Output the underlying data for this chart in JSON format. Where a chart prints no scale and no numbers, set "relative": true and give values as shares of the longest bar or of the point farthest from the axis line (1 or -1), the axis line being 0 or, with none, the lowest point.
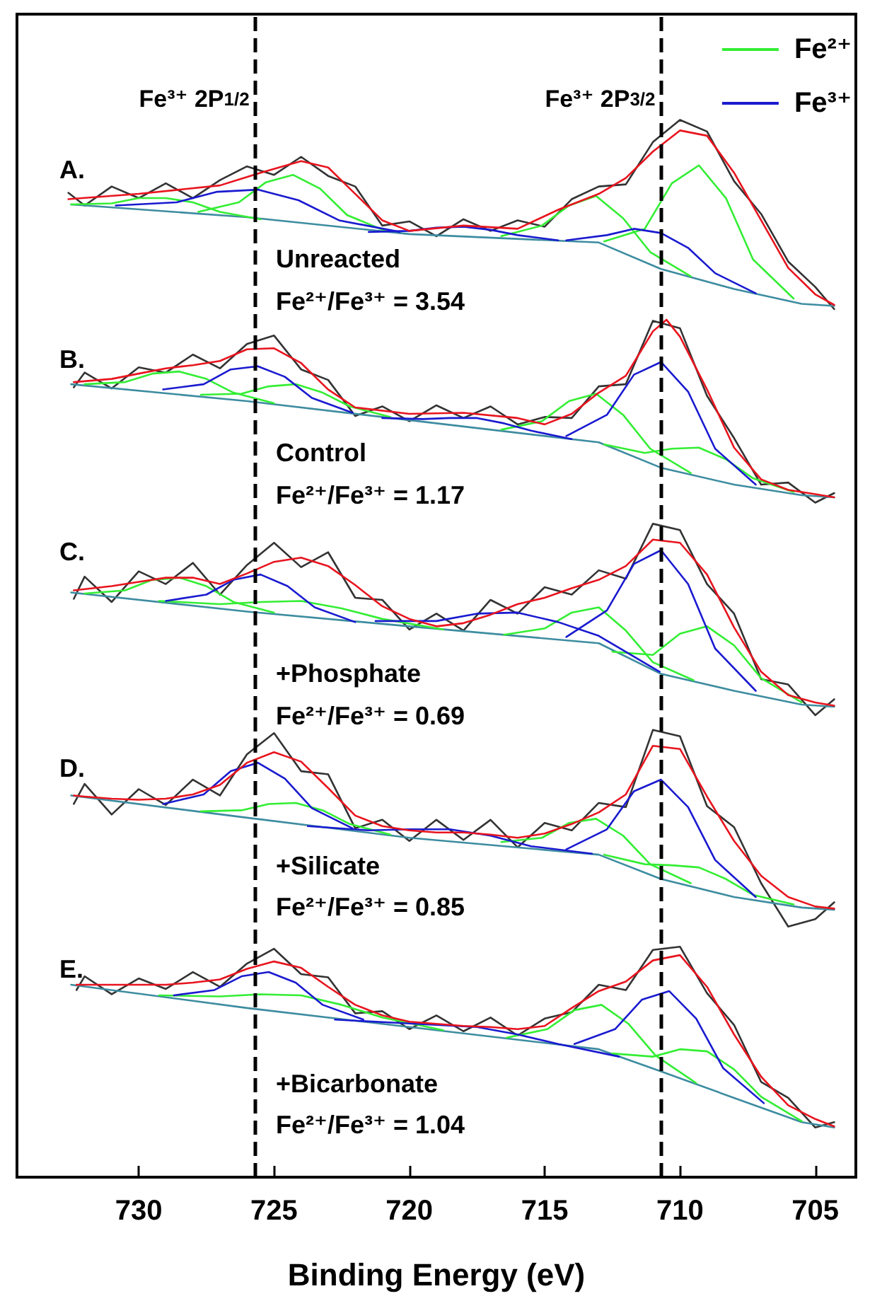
{
  "chart_data": {
    "type": "line",
    "relative": true,
    "xlabel": "Binding Energy (eV)",
    "xlim": [
      734.5,
      703.5
    ],
    "xticks": [
      730,
      725,
      720,
      715,
      710,
      705
    ],
    "grid": false,
    "legend": "top right",
    "marker": "none",
    "line_style": "solid",
    "ref_lines": [
      {
        "axis": "x",
        "value": 725.7,
        "label": "Fe³⁺ 2P$_{1/2}$",
        "color": "#000000",
        "line_style": "dashed"
      },
      {
        "axis": "x",
        "value": 710.7,
        "label": "Fe³⁺ 2P$_{3/2}$",
        "color": "#000000",
        "line_style": "dashed"
      }
    ],
    "annotations": [
      "A.",
      "Unreacted",
      "Fe²⁺/Fe³⁺ = 3.54",
      "B.",
      "Control",
      "Fe²⁺/Fe³⁺ = 1.17",
      "C.",
      "+Phosphate",
      "Fe²⁺/Fe³⁺ = 0.69",
      "D.",
      "+Silicate",
      "Fe²⁺/Fe³⁺ = 0.85",
      "E.",
      "+Bicarbonate",
      "Fe²⁺/Fe³⁺ = 1.04"
    ],
    "series": [
      {
        "color": "#333333",
        "x": [
          732.6,
          732,
          731,
          730,
          729,
          728,
          727,
          726,
          725,
          724,
          723,
          722,
          721,
          720,
          719,
          718,
          717,
          716,
          715,
          714,
          713,
          712,
          711,
          710,
          709,
          708,
          707,
          706,
          705,
          704.3
        ],
        "values": [
          0.931,
          0.919,
          0.937,
          0.926,
          0.94,
          0.926,
          0.943,
          0.956,
          0.948,
          0.965,
          0.947,
          0.937,
          0.9,
          0.904,
          0.89,
          0.906,
          0.895,
          0.905,
          0.899,
          0.925,
          0.937,
          0.939,
          0.979,
          1.0,
          0.989,
          0.942,
          0.911,
          0.866,
          0.842,
          0.821
        ]
      },
      {
        "color": "#3d8ca0",
        "x": [
          732.5,
          726,
          720,
          713,
          710.7,
          708,
          705.5,
          704.3
        ],
        "values": [
          0.92,
          0.908,
          0.892,
          0.884,
          0.859,
          0.84,
          0.826,
          0.824
        ]
      },
      {
        "name": "Fe²⁺",
        "color": "#33ee33",
        "x": [
          705.8,
          707.3,
          708.3,
          709.3,
          710.3,
          711.3,
          712.8
        ],
        "values": [
          0.831,
          0.868,
          0.926,
          0.957,
          0.94,
          0.897,
          0.885
        ]
      },
      {
        "color": "#33ee33",
        "x": [
          709.6,
          711.1,
          712.1,
          713.1,
          714.1,
          715.1,
          716.6
        ],
        "values": [
          0.852,
          0.875,
          0.907,
          0.928,
          0.919,
          0.9,
          0.89
        ]
      },
      {
        "color": "#33ee33",
        "x": [
          720.8,
          722.3,
          723.3,
          724.3,
          725.3,
          726.3,
          727.8
        ],
        "values": [
          0.894,
          0.91,
          0.935,
          0.948,
          0.941,
          0.922,
          0.913
        ]
      },
      {
        "color": "#33ee33",
        "x": [
          725.5,
          727,
          728,
          729,
          730,
          731,
          732.5
        ],
        "values": [
          0.906,
          0.913,
          0.922,
          0.926,
          0.926,
          0.921,
          0.92
        ]
      },
      {
        "name": "Fe³⁺",
        "color": "#1a1ad0",
        "x": [
          720.35,
          722.6,
          724.1,
          725.6,
          727.1,
          728.6,
          730.85
        ],
        "values": [
          0.894,
          0.905,
          0.924,
          0.934,
          0.932,
          0.922,
          0.919
        ]
      },
      {
        "color": "#1a1ad0",
        "x": [
          707.2,
          708.7,
          709.7,
          710.7,
          711.7,
          712.7,
          714.2
        ],
        "values": [
          0.836,
          0.855,
          0.879,
          0.893,
          0.897,
          0.891,
          0.886
        ]
      },
      {
        "color": "#1a1ad0",
        "x": [
          714.5,
          716,
          717,
          718,
          719,
          720,
          721.5
        ],
        "values": [
          0.886,
          0.891,
          0.896,
          0.899,
          0.898,
          0.895,
          0.894
        ]
      },
      {
        "color": "#e8141e",
        "x": [
          732.6,
          730,
          727,
          725.5,
          724,
          723,
          722,
          721,
          720,
          718,
          716,
          714.5,
          713,
          712,
          711,
          710,
          709,
          708,
          707,
          706,
          705,
          704.3
        ],
        "values": [
          0.925,
          0.93,
          0.938,
          0.95,
          0.961,
          0.955,
          0.93,
          0.905,
          0.895,
          0.9,
          0.897,
          0.915,
          0.93,
          0.945,
          0.97,
          0.99,
          0.985,
          0.95,
          0.905,
          0.86,
          0.835,
          0.825
        ]
      },
      {
        "color": "#333333",
        "x": [
          732.4,
          732,
          731,
          730,
          729,
          728,
          727,
          726,
          725,
          724,
          723,
          722,
          721,
          720,
          719,
          718,
          717,
          716,
          715,
          714,
          713,
          712,
          711,
          710,
          709,
          708,
          707,
          706,
          705,
          704.3
        ],
        "values": [
          0.747,
          0.761,
          0.746,
          0.766,
          0.761,
          0.778,
          0.765,
          0.788,
          0.796,
          0.764,
          0.754,
          0.72,
          0.729,
          0.715,
          0.73,
          0.718,
          0.729,
          0.712,
          0.719,
          0.718,
          0.748,
          0.75,
          0.81,
          0.803,
          0.739,
          0.699,
          0.655,
          0.657,
          0.638,
          0.647
        ]
      },
      {
        "color": "#3d8ca0",
        "x": [
          732.5,
          726,
          720,
          713,
          710.7,
          708,
          705.5,
          704.3
        ],
        "values": [
          0.75,
          0.734,
          0.716,
          0.695,
          0.671,
          0.655,
          0.645,
          0.643
        ]
      },
      {
        "color": "#33ee33",
        "x": [
          705.8,
          707.3,
          708.3,
          709.3,
          710.3,
          711.3,
          712.8
        ],
        "values": [
          0.648,
          0.661,
          0.679,
          0.69,
          0.689,
          0.685,
          0.693
        ]
      },
      {
        "color": "#33ee33",
        "x": [
          709.6,
          711.1,
          712.1,
          713.1,
          714.1,
          715.1,
          716.6
        ],
        "values": [
          0.666,
          0.689,
          0.721,
          0.741,
          0.734,
          0.715,
          0.707
        ]
      },
      {
        "color": "#33ee33",
        "x": [
          720.7,
          722.2,
          723.2,
          724.2,
          725.2,
          726.2,
          727.7
        ],
        "values": [
          0.719,
          0.729,
          0.742,
          0.75,
          0.748,
          0.741,
          0.74
        ]
      },
      {
        "color": "#33ee33",
        "x": [
          725,
          726.5,
          727.5,
          728.5,
          729.5,
          730.5,
          732
        ],
        "values": [
          0.732,
          0.742,
          0.755,
          0.762,
          0.76,
          0.752,
          0.75
        ]
      },
      {
        "color": "#1a1ad0",
        "x": [
          707.2,
          708.7,
          709.7,
          710.7,
          711.7,
          712.7,
          714.2
        ],
        "values": [
          0.655,
          0.689,
          0.743,
          0.771,
          0.759,
          0.721,
          0.701
        ]
      },
      {
        "color": "#1a1ad0",
        "x": [
          722.1,
          723.6,
          724.6,
          725.6,
          726.6,
          727.6,
          729.1
        ],
        "values": [
          0.723,
          0.737,
          0.757,
          0.767,
          0.764,
          0.75,
          0.745
        ]
      },
      {
        "color": "#1a1ad0",
        "x": [
          714,
          715.5,
          716.5,
          717.5,
          718.5,
          719.5,
          721
        ],
        "values": [
          0.698,
          0.706,
          0.713,
          0.718,
          0.718,
          0.717,
          0.718
        ]
      },
      {
        "color": "#e8141e",
        "x": [
          732.4,
          731,
          730,
          729,
          728,
          727,
          726,
          725,
          724,
          723,
          722,
          720,
          718,
          716,
          715,
          714,
          713,
          712,
          711,
          710.5,
          710,
          709,
          708,
          707,
          706,
          705,
          704.3
        ],
        "values": [
          0.752,
          0.755,
          0.76,
          0.765,
          0.768,
          0.772,
          0.783,
          0.784,
          0.77,
          0.745,
          0.728,
          0.722,
          0.723,
          0.718,
          0.712,
          0.722,
          0.742,
          0.758,
          0.8,
          0.811,
          0.795,
          0.745,
          0.69,
          0.66,
          0.65,
          0.646,
          0.643
        ]
      },
      {
        "color": "#333333",
        "x": [
          732.4,
          732,
          731,
          730,
          729,
          728,
          727,
          726,
          725,
          724,
          723,
          722,
          721,
          720,
          719,
          718,
          717,
          716,
          715,
          714,
          713,
          712,
          711,
          710,
          709,
          708,
          707,
          706,
          705,
          704.3
        ],
        "values": [
          0.547,
          0.568,
          0.544,
          0.573,
          0.561,
          0.581,
          0.551,
          0.579,
          0.6,
          0.577,
          0.591,
          0.548,
          0.546,
          0.518,
          0.533,
          0.517,
          0.546,
          0.533,
          0.558,
          0.551,
          0.574,
          0.566,
          0.618,
          0.612,
          0.561,
          0.533,
          0.471,
          0.466,
          0.437,
          0.452
        ]
      },
      {
        "color": "#3d8ca0",
        "x": [
          732.5,
          726,
          720,
          713,
          710.7,
          708,
          705.5,
          704.3
        ],
        "values": [
          0.553,
          0.535,
          0.521,
          0.505,
          0.476,
          0.46,
          0.447,
          0.445
        ]
      },
      {
        "color": "#33ee33",
        "x": [
          705.5,
          707,
          708,
          709,
          710,
          711,
          712.5
        ],
        "values": [
          0.449,
          0.472,
          0.503,
          0.521,
          0.514,
          0.494,
          0.497
        ]
      },
      {
        "color": "#33ee33",
        "x": [
          709.5,
          711,
          712,
          713,
          714,
          715,
          716.5
        ],
        "values": [
          0.47,
          0.487,
          0.517,
          0.539,
          0.534,
          0.519,
          0.513
        ]
      },
      {
        "color": "#33ee33",
        "x": [
          718.75,
          721,
          722.5,
          724,
          725.5,
          727,
          729.25
        ],
        "values": [
          0.518,
          0.528,
          0.538,
          0.545,
          0.544,
          0.542,
          0.545
        ]
      },
      {
        "color": "#33ee33",
        "x": [
          725,
          726.5,
          727.5,
          728.5,
          729.5,
          730.5,
          732
        ],
        "values": [
          0.534,
          0.544,
          0.559,
          0.567,
          0.565,
          0.555,
          0.552
        ]
      },
      {
        "color": "#1a1ad0",
        "x": [
          707.2,
          708.7,
          709.7,
          710.7,
          711.7,
          712.7,
          714.2
        ],
        "values": [
          0.46,
          0.5,
          0.561,
          0.593,
          0.58,
          0.536,
          0.511
        ]
      },
      {
        "color": "#1a1ad0",
        "x": [
          710.75,
          713,
          714.5,
          716,
          717.5,
          719,
          721.25
        ],
        "values": [
          0.478,
          0.512,
          0.525,
          0.534,
          0.533,
          0.526,
          0.526
        ]
      },
      {
        "color": "#1a1ad0",
        "x": [
          722,
          723.5,
          724.5,
          725.5,
          726.5,
          727.5,
          729
        ],
        "values": [
          0.525,
          0.539,
          0.559,
          0.57,
          0.565,
          0.551,
          0.545
        ]
      },
      {
        "color": "#e8141e",
        "x": [
          732.4,
          731,
          730,
          729,
          728,
          727,
          726,
          725,
          724,
          723,
          722,
          721,
          720,
          719,
          718,
          717,
          716,
          715,
          714,
          713,
          712,
          711,
          710,
          709,
          708,
          707,
          706,
          705,
          704.3
        ],
        "values": [
          0.555,
          0.559,
          0.563,
          0.567,
          0.567,
          0.561,
          0.571,
          0.582,
          0.586,
          0.578,
          0.56,
          0.54,
          0.528,
          0.521,
          0.524,
          0.532,
          0.542,
          0.548,
          0.557,
          0.565,
          0.578,
          0.603,
          0.6,
          0.57,
          0.52,
          0.478,
          0.456,
          0.449,
          0.446
        ]
      },
      {
        "color": "#333333",
        "x": [
          732.4,
          732,
          731,
          730,
          729,
          728,
          727,
          726,
          725,
          724,
          723,
          722,
          721,
          720,
          719,
          718,
          717,
          716,
          715,
          714,
          713,
          712,
          711,
          710,
          709,
          708,
          707,
          706,
          705,
          704.3
        ],
        "values": [
          0.353,
          0.372,
          0.343,
          0.367,
          0.352,
          0.376,
          0.361,
          0.4,
          0.42,
          0.384,
          0.381,
          0.33,
          0.338,
          0.318,
          0.338,
          0.319,
          0.338,
          0.312,
          0.335,
          0.328,
          0.354,
          0.35,
          0.423,
          0.417,
          0.351,
          0.331,
          0.278,
          0.237,
          0.244,
          0.26
        ]
      },
      {
        "color": "#3d8ca0",
        "x": [
          732.5,
          726,
          720,
          713,
          710.7,
          708,
          705.5,
          704.3
        ],
        "values": [
          0.361,
          0.34,
          0.321,
          0.305,
          0.282,
          0.265,
          0.255,
          0.253
        ]
      },
      {
        "color": "#33ee33",
        "x": [
          709.6,
          711.1,
          712.1,
          713.1,
          714.1,
          715.1,
          716.6
        ],
        "values": [
          0.278,
          0.296,
          0.323,
          0.339,
          0.335,
          0.321,
          0.317
        ]
      },
      {
        "color": "#33ee33",
        "x": [
          705.8,
          707.3,
          708.3,
          709.3,
          710.3,
          711.3,
          712.8
        ],
        "values": [
          0.258,
          0.267,
          0.282,
          0.293,
          0.295,
          0.296,
          0.305
        ]
      },
      {
        "color": "#33ee33",
        "x": [
          720.7,
          722.2,
          723.2,
          724.2,
          725.2,
          726.2,
          727.7
        ],
        "values": [
          0.324,
          0.334,
          0.347,
          0.354,
          0.353,
          0.347,
          0.346
        ]
      },
      {
        "color": "#1a1ad0",
        "x": [
          707.2,
          708.7,
          709.7,
          710.7,
          711.7,
          712.7,
          714.2
        ],
        "values": [
          0.265,
          0.3,
          0.35,
          0.376,
          0.365,
          0.329,
          0.31
        ]
      },
      {
        "color": "#1a1ad0",
        "x": [
          722.1,
          723.6,
          724.6,
          725.6,
          726.6,
          727.6,
          729.1
        ],
        "values": [
          0.33,
          0.349,
          0.377,
          0.392,
          0.384,
          0.362,
          0.353
        ]
      },
      {
        "color": "#1a1ad0",
        "x": [
          713.25,
          715.5,
          717,
          718.5,
          720,
          721.5,
          723.75
        ],
        "values": [
          0.306,
          0.313,
          0.323,
          0.329,
          0.329,
          0.328,
          0.332
        ]
      },
      {
        "color": "#e8141e",
        "x": [
          732.4,
          732,
          731,
          730,
          729,
          728,
          727,
          726,
          725,
          724,
          723,
          722,
          721,
          720,
          719,
          718,
          717,
          716,
          715,
          714,
          713,
          712,
          711,
          710,
          709,
          708,
          707,
          706,
          705,
          704.3
        ],
        "values": [
          0.361,
          0.36,
          0.358,
          0.357,
          0.358,
          0.362,
          0.371,
          0.392,
          0.402,
          0.393,
          0.368,
          0.342,
          0.332,
          0.328,
          0.326,
          0.326,
          0.324,
          0.321,
          0.325,
          0.334,
          0.345,
          0.362,
          0.408,
          0.405,
          0.36,
          0.318,
          0.285,
          0.265,
          0.256,
          0.254
        ]
      },
      {
        "color": "#333333",
        "x": [
          732.3,
          732,
          731,
          730,
          729,
          728,
          727,
          726,
          725,
          724,
          723,
          722,
          721,
          720,
          719,
          718,
          717,
          716,
          715,
          714,
          713,
          712,
          711,
          710,
          709,
          708,
          707,
          706,
          705,
          704.3
        ],
        "values": [
          0.177,
          0.19,
          0.173,
          0.188,
          0.178,
          0.194,
          0.18,
          0.202,
          0.216,
          0.192,
          0.189,
          0.155,
          0.157,
          0.14,
          0.153,
          0.138,
          0.151,
          0.134,
          0.15,
          0.156,
          0.182,
          0.177,
          0.215,
          0.218,
          0.174,
          0.144,
          0.09,
          0.075,
          0.047,
          0.052
        ]
      },
      {
        "color": "#3d8ca0",
        "x": [
          732.5,
          726,
          720,
          713,
          710.7,
          708,
          705.5,
          704.3
        ],
        "values": [
          0.182,
          0.16,
          0.142,
          0.121,
          0.1,
          0.075,
          0.052,
          0.047
        ]
      },
      {
        "color": "#33ee33",
        "x": [
          709.4,
          710.9,
          711.9,
          712.9,
          713.9,
          714.9,
          716.4
        ],
        "values": [
          0.089,
          0.115,
          0.145,
          0.163,
          0.158,
          0.14,
          0.132
        ]
      },
      {
        "color": "#33ee33",
        "x": [
          705.5,
          707,
          708,
          709,
          710,
          711,
          712.5
        ],
        "values": [
          0.053,
          0.076,
          0.102,
          0.119,
          0.121,
          0.114,
          0.117
        ]
      },
      {
        "color": "#33ee33",
        "x": [
          718.75,
          721,
          722.5,
          724,
          725.5,
          727,
          729.25
        ],
        "values": [
          0.139,
          0.151,
          0.163,
          0.172,
          0.173,
          0.171,
          0.172
        ]
      },
      {
        "color": "#1a1ad0",
        "x": [
          706.9,
          708.4,
          709.4,
          710.4,
          711.4,
          712.4,
          713.9
        ],
        "values": [
          0.07,
          0.103,
          0.15,
          0.176,
          0.168,
          0.14,
          0.126
        ]
      },
      {
        "color": "#1a1ad0",
        "x": [
          721.7,
          723.2,
          724.2,
          725.2,
          726.2,
          727.2,
          728.7
        ],
        "values": [
          0.149,
          0.163,
          0.184,
          0.194,
          0.19,
          0.177,
          0.172
        ]
      },
      {
        "color": "#1a1ad0",
        "x": [
          712.25,
          714.5,
          716,
          717.5,
          719,
          720.5,
          722.75
        ],
        "values": [
          0.114,
          0.126,
          0.135,
          0.142,
          0.144,
          0.146,
          0.149
        ]
      },
      {
        "color": "#e8141e",
        "x": [
          732.3,
          731,
          730,
          729,
          728,
          727,
          726,
          725,
          724,
          723,
          722,
          721,
          720,
          719,
          718,
          717,
          716,
          715,
          714,
          713,
          712,
          711,
          710,
          709,
          708,
          707,
          706,
          705,
          704.3
        ],
        "values": [
          0.182,
          0.182,
          0.182,
          0.182,
          0.184,
          0.187,
          0.197,
          0.204,
          0.198,
          0.18,
          0.163,
          0.153,
          0.147,
          0.145,
          0.143,
          0.142,
          0.14,
          0.143,
          0.16,
          0.176,
          0.185,
          0.205,
          0.21,
          0.18,
          0.135,
          0.095,
          0.068,
          0.055,
          0.048
        ]
      }
    ]
  }
}
